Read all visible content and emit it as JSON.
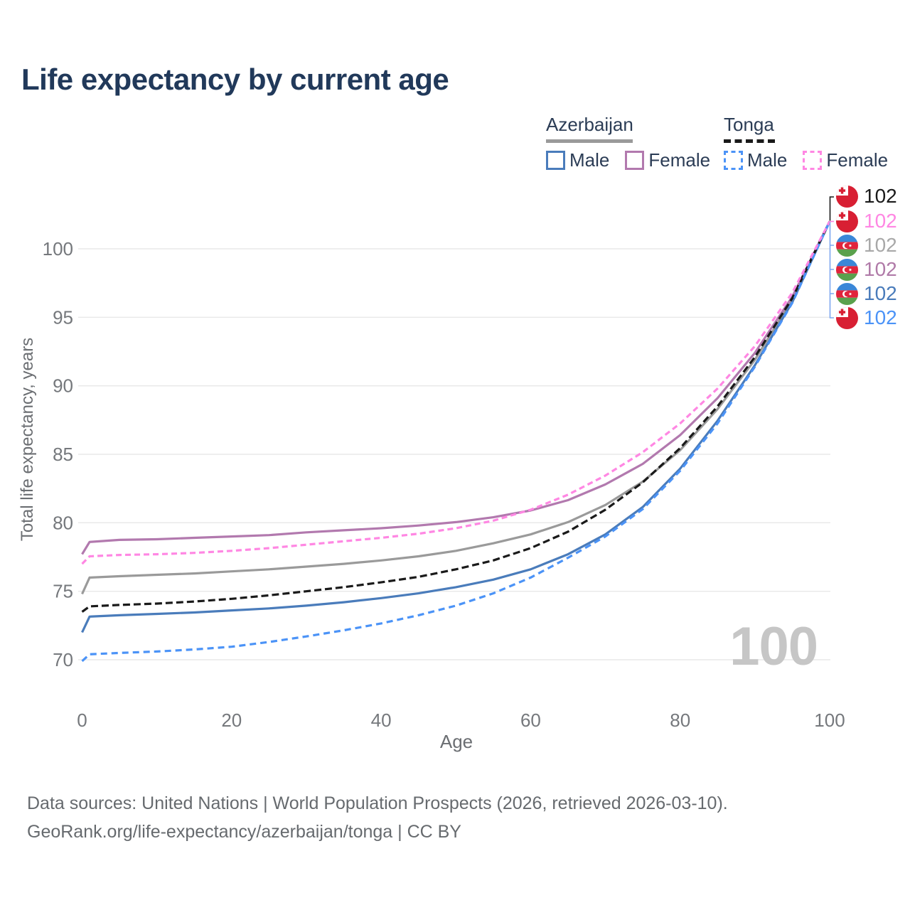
{
  "title": "Life expectancy by current age",
  "legend": {
    "groups": [
      {
        "id": "azerbaijan",
        "label": "Azerbaijan",
        "underline": "solid",
        "underline_color": "#9a9a9a",
        "items": [
          {
            "id": "azerbaijan-male",
            "label": "Male",
            "color": "#4a7cbb",
            "dashed": false
          },
          {
            "id": "azerbaijan-female",
            "label": "Female",
            "color": "#b279ae",
            "dashed": false
          }
        ]
      },
      {
        "id": "tonga",
        "label": "Tonga",
        "underline": "dashed",
        "underline_color": "#1a1a1a",
        "items": [
          {
            "id": "tonga-male",
            "label": "Male",
            "color": "#4b93f7",
            "dashed": true
          },
          {
            "id": "tonga-female",
            "label": "Female",
            "color": "#ff87e3",
            "dashed": true
          }
        ]
      }
    ]
  },
  "end_labels": [
    {
      "series": "tonga-total",
      "flag": "tonga",
      "value": "102",
      "color": "#1a1a1a"
    },
    {
      "series": "tonga-female",
      "flag": "tonga",
      "value": "102",
      "color": "#ff87e3"
    },
    {
      "series": "azerbaijan-total",
      "flag": "azerbaijan",
      "value": "102",
      "color": "#a8a8a8"
    },
    {
      "series": "azerbaijan-female",
      "flag": "azerbaijan",
      "value": "102",
      "color": "#b07aa8"
    },
    {
      "series": "azerbaijan-male",
      "flag": "azerbaijan",
      "value": "102",
      "color": "#4a7cbb"
    },
    {
      "series": "tonga-male",
      "flag": "tonga",
      "value": "102",
      "color": "#4b93f7"
    }
  ],
  "connector_colors": {
    "top": "#1a1a1a",
    "middle": "#ff87e3",
    "bottom": "#7ea8f0"
  },
  "watermark": "100",
  "footer": {
    "line1": "Data sources: United Nations | World Population Prospects (2026, retrieved 2026-03-10).",
    "line2": "GeoRank.org/life-expectancy/azerbaijan/tonga | CC BY"
  },
  "chart_data": {
    "type": "line",
    "title": "Life expectancy by current age",
    "xlabel": "Age",
    "ylabel": "Total life expectancy, years",
    "xlim": [
      0,
      100
    ],
    "ylim": [
      68.5,
      103
    ],
    "xticks": [
      0,
      20,
      40,
      60,
      80,
      100
    ],
    "yticks": [
      70,
      75,
      80,
      85,
      90,
      95,
      100
    ],
    "grid": "horizontal",
    "legend_position": "top-right",
    "x": [
      0,
      1,
      5,
      10,
      15,
      20,
      25,
      30,
      35,
      40,
      45,
      50,
      55,
      60,
      65,
      70,
      75,
      80,
      85,
      90,
      95,
      100
    ],
    "series": [
      {
        "id": "azerbaijan-total",
        "name": "Azerbaijan Total",
        "country": "Azerbaijan",
        "sex": "total",
        "color": "#9a9a9a",
        "dash": null,
        "values": [
          74.8,
          76.0,
          76.1,
          76.2,
          76.3,
          76.45,
          76.6,
          76.8,
          77.0,
          77.25,
          77.55,
          77.95,
          78.5,
          79.15,
          80.05,
          81.3,
          83.0,
          85.3,
          88.3,
          91.9,
          96.3,
          102
        ]
      },
      {
        "id": "azerbaijan-female",
        "name": "Azerbaijan Female",
        "country": "Azerbaijan",
        "sex": "female",
        "color": "#b279ae",
        "dash": null,
        "values": [
          77.7,
          78.6,
          78.75,
          78.8,
          78.9,
          79.0,
          79.1,
          79.3,
          79.45,
          79.6,
          79.8,
          80.05,
          80.4,
          80.9,
          81.65,
          82.8,
          84.3,
          86.4,
          89.1,
          92.4,
          96.5,
          102
        ]
      },
      {
        "id": "azerbaijan-male",
        "name": "Azerbaijan Male",
        "country": "Azerbaijan",
        "sex": "male",
        "color": "#4a7cbb",
        "dash": null,
        "values": [
          72.0,
          73.15,
          73.25,
          73.35,
          73.45,
          73.6,
          73.75,
          73.95,
          74.2,
          74.5,
          74.85,
          75.3,
          75.85,
          76.6,
          77.7,
          79.15,
          81.15,
          83.95,
          87.45,
          91.5,
          96.1,
          102
        ]
      },
      {
        "id": "tonga-total",
        "name": "Tonga Total",
        "country": "Tonga",
        "sex": "total",
        "color": "#1a1a1a",
        "dash": "10 5",
        "values": [
          73.5,
          73.9,
          74.0,
          74.1,
          74.25,
          74.45,
          74.7,
          75.0,
          75.3,
          75.65,
          76.05,
          76.6,
          77.25,
          78.15,
          79.35,
          80.95,
          82.95,
          85.45,
          88.5,
          92.1,
          96.4,
          102
        ]
      },
      {
        "id": "tonga-male",
        "name": "Tonga Male",
        "country": "Tonga",
        "sex": "male",
        "color": "#4b93f7",
        "dash": "9 6",
        "values": [
          69.9,
          70.4,
          70.5,
          70.6,
          70.75,
          70.95,
          71.3,
          71.7,
          72.15,
          72.65,
          73.25,
          73.95,
          74.85,
          76.0,
          77.45,
          79.0,
          81.0,
          83.8,
          87.25,
          91.4,
          96.05,
          102
        ]
      },
      {
        "id": "tonga-female",
        "name": "Tonga Female",
        "country": "Tonga",
        "sex": "female",
        "color": "#ff87e3",
        "dash": "8 5",
        "values": [
          77.0,
          77.55,
          77.65,
          77.7,
          77.8,
          77.95,
          78.15,
          78.4,
          78.65,
          78.9,
          79.2,
          79.6,
          80.15,
          80.95,
          82.05,
          83.45,
          85.15,
          87.25,
          89.8,
          92.9,
          96.8,
          102
        ]
      }
    ]
  }
}
